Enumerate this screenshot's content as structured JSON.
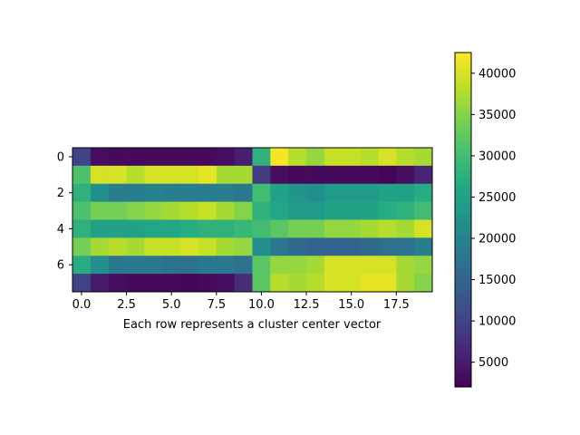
{
  "chart_data": {
    "type": "heatmap",
    "title": "",
    "xlabel": "Each row represents a cluster center vector",
    "ylabel": "",
    "colormap": "viridis",
    "columns": 20,
    "rows": 8,
    "xlim": [
      -0.5,
      19.5
    ],
    "ylim": [
      7.5,
      -0.5
    ],
    "xticks": [
      0,
      2.5,
      5,
      7.5,
      10,
      12.5,
      15,
      17.5
    ],
    "xtick_labels": [
      "0.0",
      "2.5",
      "5.0",
      "7.5",
      "10.0",
      "12.5",
      "15.0",
      "17.5"
    ],
    "yticks": [
      0,
      2,
      4,
      6
    ],
    "ytick_labels": [
      "0",
      "2",
      "4",
      "6"
    ],
    "grid": false,
    "values": [
      [
        10000,
        3500,
        3000,
        3000,
        3000,
        3000,
        3000,
        3000,
        3500,
        5500,
        28000,
        42000,
        38000,
        36000,
        39000,
        39000,
        38000,
        40000,
        38000,
        37000
      ],
      [
        31000,
        40000,
        40000,
        38000,
        40000,
        40000,
        40000,
        41000,
        37000,
        37000,
        9000,
        3500,
        3000,
        3000,
        3000,
        3000,
        3000,
        2500,
        3500,
        6000
      ],
      [
        28000,
        22000,
        19000,
        19000,
        20000,
        19000,
        19000,
        19000,
        19000,
        18000,
        30000,
        25000,
        23000,
        22000,
        24000,
        24000,
        24000,
        25000,
        25000,
        27000
      ],
      [
        31000,
        34000,
        34000,
        35000,
        36000,
        37000,
        38000,
        39000,
        37000,
        35000,
        28000,
        26000,
        24000,
        24000,
        25000,
        25000,
        25000,
        27000,
        28000,
        30000
      ],
      [
        28000,
        25000,
        25000,
        25000,
        26000,
        26000,
        27000,
        28000,
        28000,
        29000,
        30000,
        32000,
        34000,
        34000,
        36000,
        36000,
        37000,
        38000,
        37000,
        40000
      ],
      [
        34000,
        37000,
        38000,
        37000,
        39000,
        39000,
        40000,
        39000,
        37000,
        36000,
        22000,
        18000,
        16000,
        15000,
        15000,
        15000,
        16000,
        17000,
        17000,
        19000
      ],
      [
        27000,
        22000,
        18000,
        18000,
        18000,
        17000,
        17000,
        18000,
        18000,
        17000,
        32000,
        36000,
        36000,
        37000,
        40000,
        40000,
        40000,
        40000,
        37000,
        36000
      ],
      [
        10000,
        5000,
        3500,
        3000,
        3000,
        3000,
        2500,
        3000,
        3500,
        7000,
        32000,
        38000,
        37000,
        38000,
        40000,
        40000,
        41000,
        41000,
        37000,
        35000
      ]
    ],
    "colorbar": {
      "min": 2000,
      "max": 42500,
      "ticks": [
        5000,
        10000,
        15000,
        20000,
        25000,
        30000,
        35000,
        40000
      ],
      "tick_labels": [
        "5000",
        "10000",
        "15000",
        "20000",
        "25000",
        "30000",
        "35000",
        "40000"
      ]
    }
  }
}
